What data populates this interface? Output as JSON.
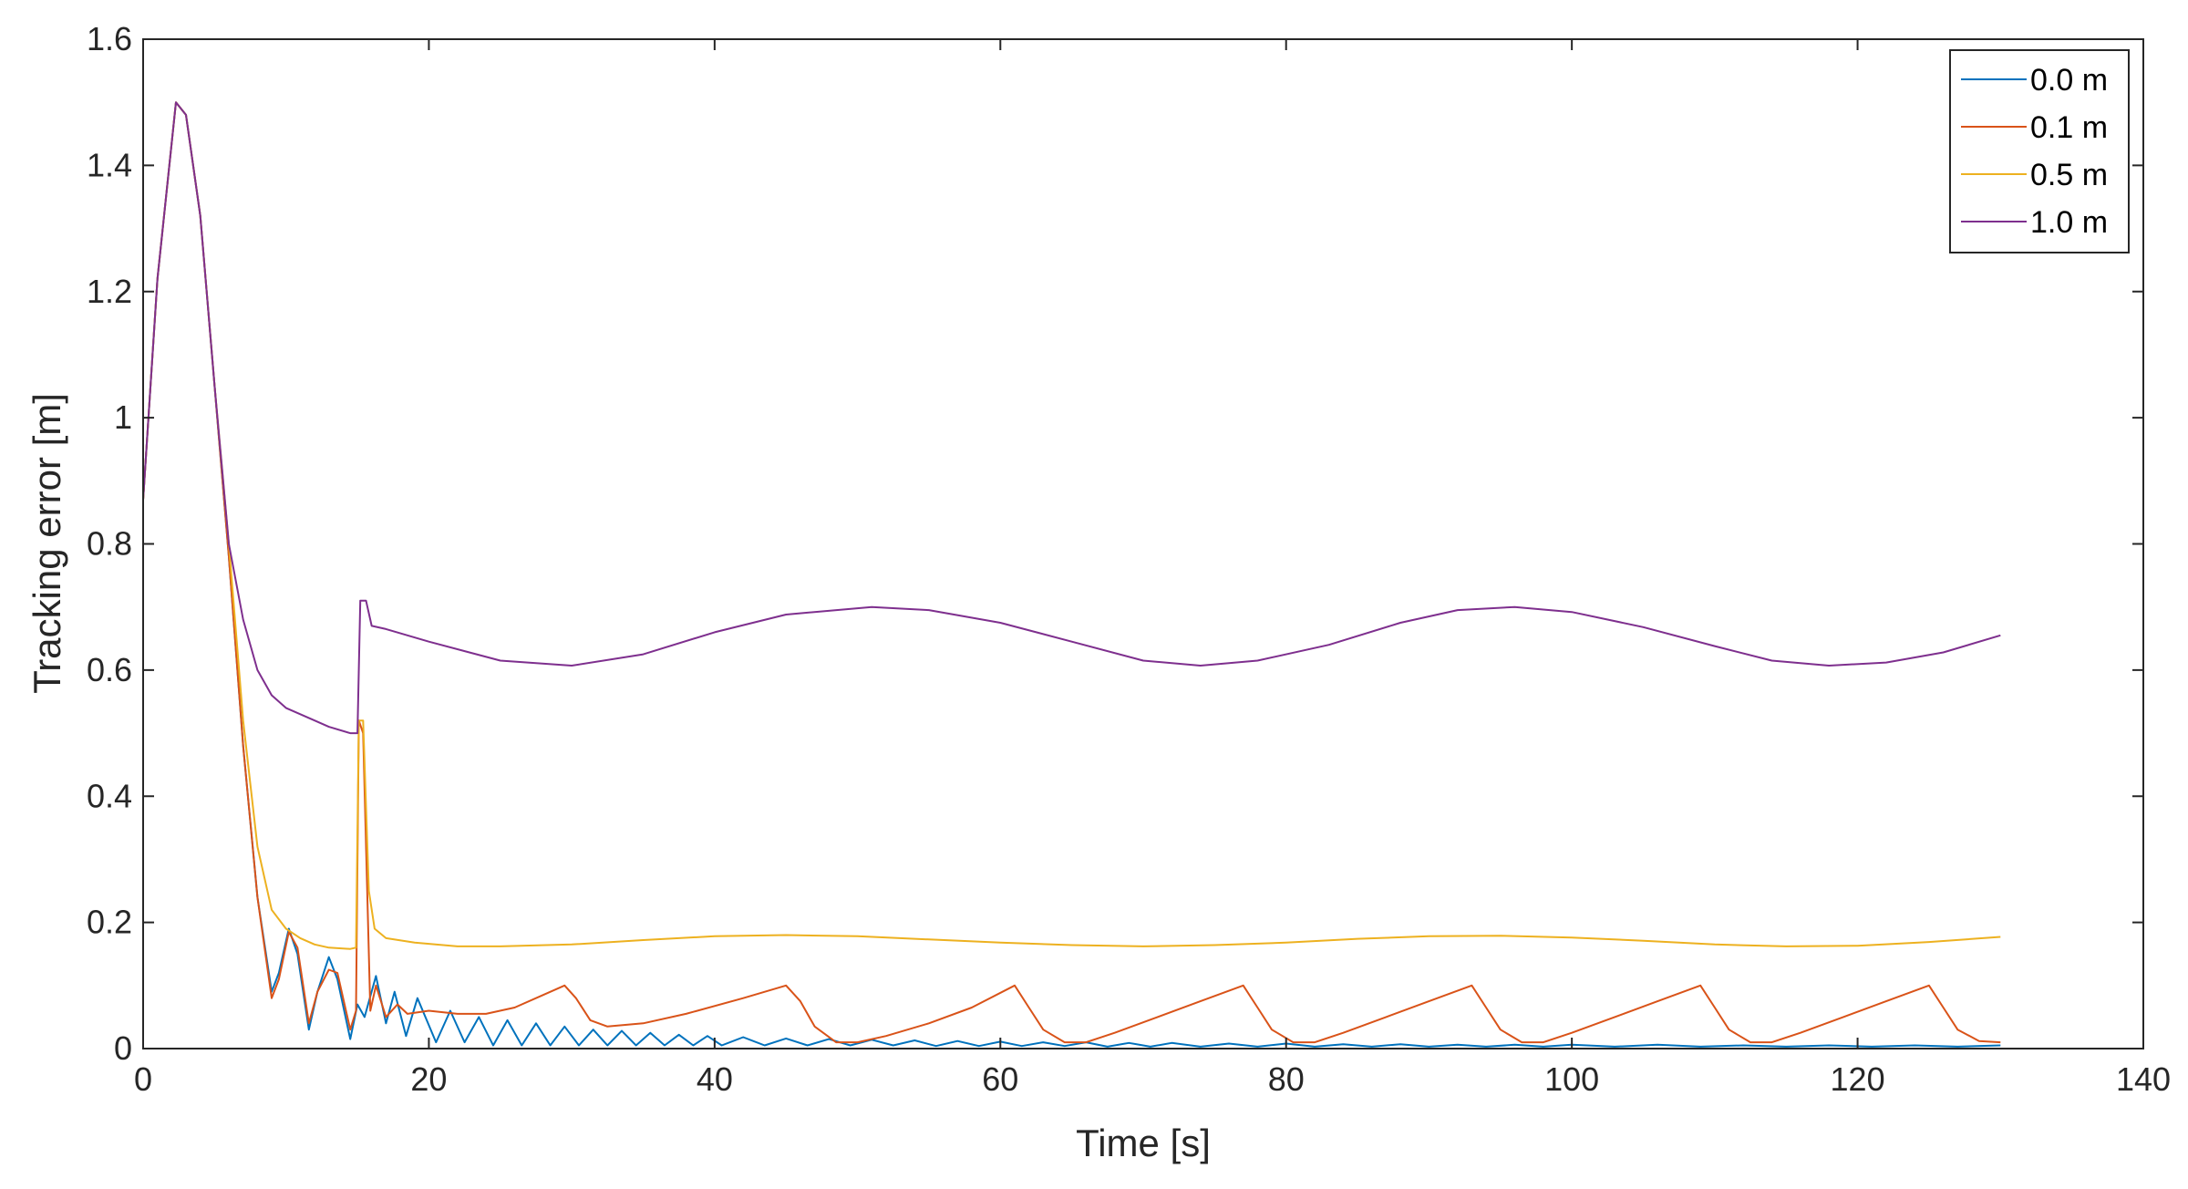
{
  "chart_data": {
    "type": "line",
    "title": "",
    "xlabel": "Time [s]",
    "ylabel": "Tracking error [m]",
    "xlim": [
      0,
      140
    ],
    "ylim": [
      0,
      1.6
    ],
    "xticks": [
      0,
      20,
      40,
      60,
      80,
      100,
      120,
      140
    ],
    "yticks": [
      0,
      0.2,
      0.4,
      0.6,
      0.8,
      1,
      1.2,
      1.4,
      1.6
    ],
    "xtick_labels": [
      "0",
      "20",
      "40",
      "60",
      "80",
      "100",
      "120",
      "140"
    ],
    "ytick_labels": [
      "0",
      "0.2",
      "0.4",
      "0.6",
      "0.8",
      "1",
      "1.2",
      "1.4",
      "1.6"
    ],
    "grid": false,
    "legend_position": "top-right",
    "series": [
      {
        "name": "0.0 m",
        "color": "#0072bd",
        "points": [
          [
            0,
            0.87
          ],
          [
            1,
            1.22
          ],
          [
            2.3,
            1.5
          ],
          [
            3,
            1.48
          ],
          [
            4,
            1.32
          ],
          [
            5,
            1.05
          ],
          [
            6,
            0.78
          ],
          [
            7,
            0.48
          ],
          [
            8,
            0.24
          ],
          [
            9,
            0.09
          ],
          [
            9.5,
            0.12
          ],
          [
            10.2,
            0.19
          ],
          [
            10.8,
            0.15
          ],
          [
            11.6,
            0.03
          ],
          [
            12.2,
            0.09
          ],
          [
            13,
            0.145
          ],
          [
            13.6,
            0.11
          ],
          [
            14.5,
            0.015
          ],
          [
            15,
            0.07
          ],
          [
            15.5,
            0.05
          ],
          [
            16.3,
            0.115
          ],
          [
            17,
            0.04
          ],
          [
            17.6,
            0.09
          ],
          [
            18.4,
            0.02
          ],
          [
            19.2,
            0.08
          ],
          [
            20.5,
            0.01
          ],
          [
            21.5,
            0.06
          ],
          [
            22.5,
            0.01
          ],
          [
            23.5,
            0.05
          ],
          [
            24.5,
            0.005
          ],
          [
            25.5,
            0.045
          ],
          [
            26.5,
            0.005
          ],
          [
            27.5,
            0.04
          ],
          [
            28.5,
            0.005
          ],
          [
            29.5,
            0.035
          ],
          [
            30.5,
            0.005
          ],
          [
            31.5,
            0.03
          ],
          [
            32.5,
            0.005
          ],
          [
            33.5,
            0.028
          ],
          [
            34.5,
            0.005
          ],
          [
            35.5,
            0.025
          ],
          [
            36.5,
            0.005
          ],
          [
            37.5,
            0.022
          ],
          [
            38.5,
            0.005
          ],
          [
            39.5,
            0.02
          ],
          [
            40.5,
            0.005
          ],
          [
            42,
            0.018
          ],
          [
            43.5,
            0.005
          ],
          [
            45,
            0.016
          ],
          [
            46.5,
            0.005
          ],
          [
            48,
            0.015
          ],
          [
            49.5,
            0.005
          ],
          [
            51,
            0.014
          ],
          [
            52.5,
            0.005
          ],
          [
            54,
            0.013
          ],
          [
            55.5,
            0.004
          ],
          [
            57,
            0.012
          ],
          [
            58.5,
            0.004
          ],
          [
            60,
            0.011
          ],
          [
            61.5,
            0.004
          ],
          [
            63,
            0.01
          ],
          [
            64.5,
            0.004
          ],
          [
            66,
            0.01
          ],
          [
            67.5,
            0.003
          ],
          [
            69,
            0.009
          ],
          [
            70.5,
            0.003
          ],
          [
            72,
            0.009
          ],
          [
            74,
            0.003
          ],
          [
            76,
            0.008
          ],
          [
            78,
            0.003
          ],
          [
            80,
            0.008
          ],
          [
            82,
            0.003
          ],
          [
            84,
            0.007
          ],
          [
            86,
            0.003
          ],
          [
            88,
            0.007
          ],
          [
            90,
            0.003
          ],
          [
            92,
            0.006
          ],
          [
            94,
            0.003
          ],
          [
            96,
            0.006
          ],
          [
            98,
            0.003
          ],
          [
            100,
            0.006
          ],
          [
            103,
            0.003
          ],
          [
            106,
            0.006
          ],
          [
            109,
            0.003
          ],
          [
            112,
            0.005
          ],
          [
            115,
            0.003
          ],
          [
            118,
            0.005
          ],
          [
            121,
            0.003
          ],
          [
            124,
            0.005
          ],
          [
            127,
            0.003
          ],
          [
            130,
            0.005
          ]
        ]
      },
      {
        "name": "0.1 m",
        "color": "#d95319",
        "points": [
          [
            0,
            0.87
          ],
          [
            1,
            1.22
          ],
          [
            2.3,
            1.5
          ],
          [
            3,
            1.48
          ],
          [
            4,
            1.32
          ],
          [
            5,
            1.05
          ],
          [
            6,
            0.78
          ],
          [
            7,
            0.48
          ],
          [
            8,
            0.24
          ],
          [
            9,
            0.08
          ],
          [
            9.5,
            0.11
          ],
          [
            10.2,
            0.185
          ],
          [
            10.8,
            0.16
          ],
          [
            11.6,
            0.04
          ],
          [
            12.2,
            0.09
          ],
          [
            13,
            0.125
          ],
          [
            13.6,
            0.12
          ],
          [
            14.5,
            0.03
          ],
          [
            14.9,
            0.06
          ],
          [
            15.1,
            0.52
          ],
          [
            15.4,
            0.5
          ],
          [
            15.9,
            0.06
          ],
          [
            16.3,
            0.1
          ],
          [
            17,
            0.05
          ],
          [
            17.8,
            0.07
          ],
          [
            18.5,
            0.055
          ],
          [
            20,
            0.06
          ],
          [
            22,
            0.055
          ],
          [
            24,
            0.055
          ],
          [
            26,
            0.065
          ],
          [
            28,
            0.085
          ],
          [
            29.5,
            0.1
          ],
          [
            30.3,
            0.08
          ],
          [
            31.3,
            0.045
          ],
          [
            32.5,
            0.035
          ],
          [
            35,
            0.04
          ],
          [
            38,
            0.055
          ],
          [
            42,
            0.08
          ],
          [
            45,
            0.1
          ],
          [
            46,
            0.075
          ],
          [
            47,
            0.035
          ],
          [
            48.5,
            0.01
          ],
          [
            50,
            0.01
          ],
          [
            52,
            0.02
          ],
          [
            55,
            0.04
          ],
          [
            58,
            0.065
          ],
          [
            61,
            0.1
          ],
          [
            62,
            0.065
          ],
          [
            63,
            0.03
          ],
          [
            64.5,
            0.01
          ],
          [
            66,
            0.01
          ],
          [
            68,
            0.025
          ],
          [
            71,
            0.05
          ],
          [
            74,
            0.075
          ],
          [
            77,
            0.1
          ],
          [
            78,
            0.065
          ],
          [
            79,
            0.03
          ],
          [
            80.5,
            0.01
          ],
          [
            82,
            0.01
          ],
          [
            84,
            0.025
          ],
          [
            87,
            0.05
          ],
          [
            90,
            0.075
          ],
          [
            93,
            0.1
          ],
          [
            94,
            0.065
          ],
          [
            95,
            0.03
          ],
          [
            96.5,
            0.01
          ],
          [
            98,
            0.01
          ],
          [
            100,
            0.025
          ],
          [
            103,
            0.05
          ],
          [
            106,
            0.075
          ],
          [
            109,
            0.1
          ],
          [
            110,
            0.065
          ],
          [
            111,
            0.03
          ],
          [
            112.5,
            0.01
          ],
          [
            114,
            0.01
          ],
          [
            116,
            0.025
          ],
          [
            119,
            0.05
          ],
          [
            122,
            0.075
          ],
          [
            125,
            0.1
          ],
          [
            126,
            0.065
          ],
          [
            127,
            0.03
          ],
          [
            128.5,
            0.012
          ],
          [
            130,
            0.01
          ]
        ]
      },
      {
        "name": "0.5 m",
        "color": "#edb120",
        "points": [
          [
            0,
            0.87
          ],
          [
            1,
            1.22
          ],
          [
            2.3,
            1.5
          ],
          [
            3,
            1.48
          ],
          [
            4,
            1.32
          ],
          [
            5,
            1.05
          ],
          [
            6,
            0.8
          ],
          [
            7,
            0.52
          ],
          [
            8,
            0.32
          ],
          [
            9,
            0.22
          ],
          [
            10,
            0.19
          ],
          [
            11,
            0.175
          ],
          [
            12,
            0.165
          ],
          [
            13,
            0.16
          ],
          [
            14.5,
            0.158
          ],
          [
            14.9,
            0.16
          ],
          [
            15.1,
            0.52
          ],
          [
            15.4,
            0.52
          ],
          [
            15.8,
            0.25
          ],
          [
            16.2,
            0.19
          ],
          [
            17,
            0.175
          ],
          [
            19,
            0.168
          ],
          [
            22,
            0.162
          ],
          [
            25,
            0.162
          ],
          [
            30,
            0.165
          ],
          [
            35,
            0.172
          ],
          [
            40,
            0.178
          ],
          [
            45,
            0.18
          ],
          [
            50,
            0.178
          ],
          [
            55,
            0.173
          ],
          [
            60,
            0.168
          ],
          [
            65,
            0.164
          ],
          [
            70,
            0.162
          ],
          [
            75,
            0.164
          ],
          [
            80,
            0.168
          ],
          [
            85,
            0.174
          ],
          [
            90,
            0.178
          ],
          [
            95,
            0.179
          ],
          [
            100,
            0.176
          ],
          [
            105,
            0.171
          ],
          [
            110,
            0.165
          ],
          [
            115,
            0.162
          ],
          [
            120,
            0.163
          ],
          [
            125,
            0.169
          ],
          [
            130,
            0.177
          ]
        ]
      },
      {
        "name": "1.0 m",
        "color": "#7e2f8e",
        "points": [
          [
            0,
            0.87
          ],
          [
            1,
            1.22
          ],
          [
            2.3,
            1.5
          ],
          [
            3,
            1.48
          ],
          [
            4,
            1.32
          ],
          [
            5,
            1.05
          ],
          [
            6,
            0.8
          ],
          [
            7,
            0.68
          ],
          [
            8,
            0.6
          ],
          [
            9,
            0.56
          ],
          [
            10,
            0.54
          ],
          [
            11,
            0.53
          ],
          [
            12,
            0.52
          ],
          [
            13,
            0.51
          ],
          [
            14.5,
            0.5
          ],
          [
            15,
            0.5
          ],
          [
            15.2,
            0.71
          ],
          [
            15.6,
            0.71
          ],
          [
            16,
            0.67
          ],
          [
            17,
            0.665
          ],
          [
            20,
            0.645
          ],
          [
            25,
            0.615
          ],
          [
            30,
            0.607
          ],
          [
            35,
            0.625
          ],
          [
            40,
            0.66
          ],
          [
            45,
            0.688
          ],
          [
            51,
            0.7
          ],
          [
            55,
            0.695
          ],
          [
            60,
            0.675
          ],
          [
            65,
            0.645
          ],
          [
            70,
            0.615
          ],
          [
            74,
            0.607
          ],
          [
            78,
            0.615
          ],
          [
            83,
            0.64
          ],
          [
            88,
            0.675
          ],
          [
            92,
            0.695
          ],
          [
            96,
            0.7
          ],
          [
            100,
            0.692
          ],
          [
            105,
            0.668
          ],
          [
            110,
            0.638
          ],
          [
            114,
            0.615
          ],
          [
            118,
            0.607
          ],
          [
            122,
            0.612
          ],
          [
            126,
            0.628
          ],
          [
            130,
            0.655
          ]
        ]
      }
    ]
  }
}
